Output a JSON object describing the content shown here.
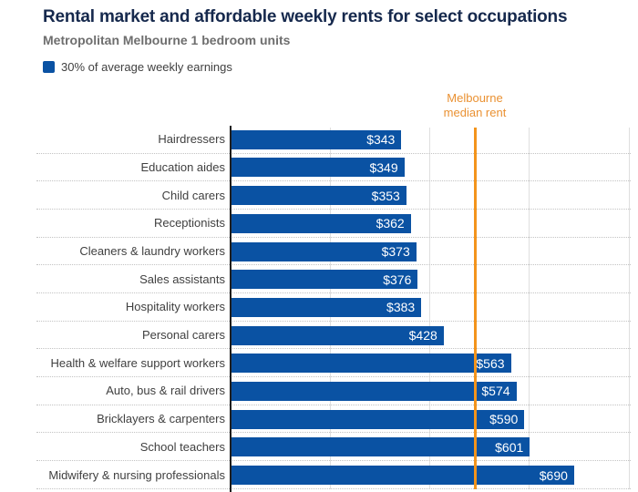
{
  "header": {
    "title": "Rental market and affordable weekly rents for select occupations",
    "subtitle": "Metropolitan Melbourne 1 bedroom units"
  },
  "legend": {
    "label": "30% of average weekly earnings"
  },
  "annotation": {
    "line1": "Melbourne",
    "line2": "median rent"
  },
  "colors": {
    "bar": "#0a52a3",
    "title": "#16294d",
    "subtitle": "#6e6e6e",
    "category_label": "#404040",
    "legend_label": "#404040",
    "median_line": "#f3941c",
    "median_label": "#ea9132",
    "gridline": "#dedede",
    "row_divider": "#c3c3c3",
    "axis": "#1f1f1f",
    "value_label": "#ffffff"
  },
  "chart_data": {
    "type": "bar",
    "orientation": "horizontal",
    "title": "Rental market and affordable weekly rents for select occupations",
    "subtitle": "Metropolitan Melbourne 1 bedroom units",
    "legend_entries": [
      "30% of average weekly earnings"
    ],
    "categories": [
      "Hairdressers",
      "Education aides",
      "Child carers",
      "Receptionists",
      "Cleaners & laundry workers",
      "Sales assistants",
      "Hospitality workers",
      "Personal carers",
      "Health & welfare support workers",
      "Auto, bus & rail drivers",
      "Bricklayers & carpenters",
      "School teachers",
      "Midwifery & nursing professionals"
    ],
    "values": [
      343,
      349,
      353,
      362,
      373,
      376,
      383,
      428,
      563,
      574,
      590,
      601,
      690
    ],
    "value_labels": [
      "$343",
      "$349",
      "$353",
      "$362",
      "$373",
      "$376",
      "$383",
      "$428",
      "$563",
      "$574",
      "$590",
      "$601",
      "$690"
    ],
    "xlim": [
      0,
      800
    ],
    "gridline_values": [
      200,
      400,
      600,
      800
    ],
    "x_tick_labels_visible": false,
    "grid": "vertical-solid, horizontal-dotted-row-dividers",
    "reference_line": {
      "label": "Melbourne median rent",
      "value": 491
    },
    "legend_position": "top-left"
  }
}
